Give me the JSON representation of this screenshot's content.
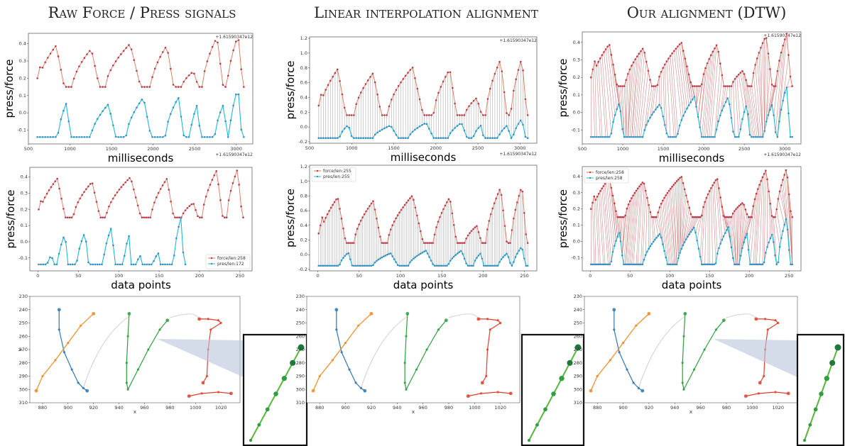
{
  "columns": [
    {
      "title": "Raw Force / Press signals"
    },
    {
      "title": "Linear interpolation alignment"
    },
    {
      "title": "Our alignment (DTW)"
    }
  ],
  "colors": {
    "force": "#b83a4b",
    "force_line": "#e0745a",
    "press": "#1fb9d8",
    "press_marker": "#3a8fc0",
    "link": "#8a8a8a",
    "stroke_green": "#2e9e3e",
    "stroke_orange": "#f08a24",
    "stroke_blue": "#2f77b4",
    "stroke_red": "#e0402a"
  },
  "chart_data": [
    {
      "type": "line",
      "name": "raw-time",
      "ylabel": "press/force",
      "xlabel": "milliseconds",
      "x_offset_label": "+1.61590347e12",
      "xlim": [
        500,
        3200
      ],
      "ylim": [
        -0.18,
        0.46
      ],
      "xticks": [
        500,
        1000,
        1500,
        2000,
        2500,
        3000
      ],
      "yticks": [
        -0.1,
        0.0,
        0.1,
        0.2,
        0.3,
        0.4
      ],
      "links": false
    },
    {
      "type": "line",
      "name": "linear-time",
      "ylabel": "press/force",
      "xlabel": "milliseconds",
      "x_offset_label": "+1.61590347e12",
      "xlim": [
        500,
        3200
      ],
      "ylim": [
        -0.22,
        1.22
      ],
      "xticks": [
        500,
        1000,
        1500,
        2000,
        2500,
        3000
      ],
      "yticks": [
        -0.2,
        0.0,
        0.2,
        0.4,
        0.6,
        0.8,
        1.0,
        1.2
      ],
      "links": true
    },
    {
      "type": "line",
      "name": "dtw-time",
      "ylabel": "press/force",
      "xlabel": "milliseconds",
      "x_offset_label": "+1.61590347e12",
      "xlim": [
        500,
        3200
      ],
      "ylim": [
        -0.18,
        0.46
      ],
      "xticks": [
        500,
        1000,
        1500,
        2000,
        2500,
        3000
      ],
      "yticks": [
        -0.1,
        0.0,
        0.1,
        0.2,
        0.3,
        0.4
      ],
      "links": true
    },
    {
      "type": "line",
      "name": "raw-index",
      "ylabel": "press/force",
      "xlabel": "data points",
      "xlim": [
        -10,
        265
      ],
      "ylim": [
        -0.18,
        0.46
      ],
      "xticks": [
        0,
        50,
        100,
        150,
        200,
        250
      ],
      "yticks": [
        -0.1,
        0.0,
        0.1,
        0.2,
        0.3,
        0.4
      ],
      "links": false,
      "legend": {
        "placement": "bottom-right",
        "entries": [
          "force/len:258",
          "pres/len:172"
        ]
      }
    },
    {
      "type": "line",
      "name": "linear-index",
      "ylabel": "press/force",
      "xlabel": "data points",
      "xlim": [
        -10,
        265
      ],
      "ylim": [
        -0.22,
        1.22
      ],
      "xticks": [
        0,
        50,
        100,
        150,
        200,
        250
      ],
      "yticks": [
        -0.2,
        0.0,
        0.2,
        0.4,
        0.6,
        0.8,
        1.0,
        1.2
      ],
      "links": true,
      "legend": {
        "placement": "top-left",
        "entries": [
          "force/len:255",
          "pres/len:255"
        ]
      }
    },
    {
      "type": "line",
      "name": "dtw-index",
      "ylabel": "press/force",
      "xlabel": "data points",
      "xlim": [
        -10,
        265
      ],
      "ylim": [
        -0.18,
        0.46
      ],
      "xticks": [
        0,
        50,
        100,
        150,
        200,
        250
      ],
      "yticks": [
        -0.1,
        0.0,
        0.1,
        0.2,
        0.3,
        0.4
      ],
      "links": true,
      "legend": {
        "placement": "top-left",
        "entries": [
          "force/len:258",
          "pres/len:258"
        ]
      }
    },
    {
      "type": "scatter",
      "name": "trajectory",
      "xlabel": "x",
      "ylabel": "y",
      "xlim": [
        870,
        1035
      ],
      "ylim": [
        310,
        230
      ],
      "xticks": [
        880,
        900,
        920,
        940,
        960,
        980,
        1000,
        1020
      ],
      "yticks": [
        230,
        240,
        250,
        260,
        270,
        280,
        290,
        300,
        310
      ],
      "zoom_inset": true
    }
  ]
}
